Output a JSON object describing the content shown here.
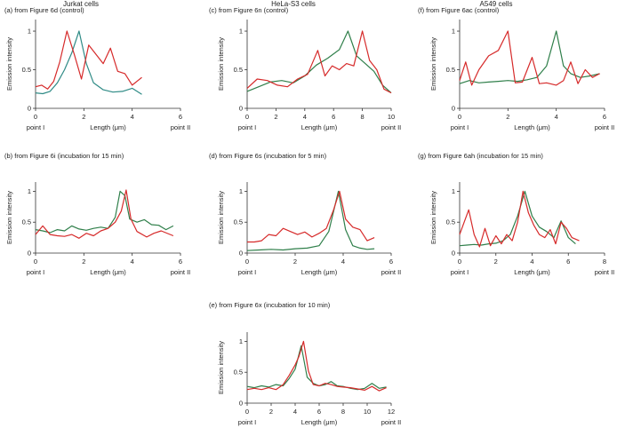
{
  "columns": [
    {
      "id": "jurkat",
      "title": "Jurkat cells"
    },
    {
      "id": "hela",
      "title": "HeLa-S3 cells"
    },
    {
      "id": "a549",
      "title": "A549 cells"
    }
  ],
  "colors": {
    "red": "#d62a2a",
    "green": "#2f7f4a",
    "teal": "#2f8b86"
  },
  "chart_data": [
    {
      "id": "a",
      "type": "line",
      "title": "(a) from Figure 6d (control)",
      "xlabel": "Length (μm)",
      "ylabel": "Emission intensity",
      "xlim": [
        0,
        6
      ],
      "ylim": [
        0,
        1.15
      ],
      "xticks": [
        0,
        2,
        4,
        6
      ],
      "yticks": [
        0,
        0.5,
        1
      ],
      "start_label": "point I",
      "end_label": "point II",
      "series": [
        {
          "name": "teal",
          "color": "#2f8b86",
          "x": [
            0,
            0.3,
            0.6,
            0.9,
            1.2,
            1.5,
            1.8,
            2.1,
            2.4,
            2.8,
            3.2,
            3.6,
            4.0,
            4.4
          ],
          "y": [
            0.2,
            0.19,
            0.22,
            0.33,
            0.5,
            0.72,
            1.0,
            0.58,
            0.33,
            0.24,
            0.21,
            0.22,
            0.26,
            0.18
          ]
        },
        {
          "name": "red",
          "color": "#d62a2a",
          "x": [
            0,
            0.25,
            0.5,
            0.75,
            1.0,
            1.3,
            1.6,
            1.9,
            2.2,
            2.5,
            2.8,
            3.1,
            3.4,
            3.7,
            4.0,
            4.4
          ],
          "y": [
            0.28,
            0.3,
            0.25,
            0.35,
            0.6,
            1.0,
            0.7,
            0.38,
            0.82,
            0.7,
            0.58,
            0.78,
            0.48,
            0.45,
            0.3,
            0.4
          ]
        }
      ]
    },
    {
      "id": "b",
      "type": "line",
      "title": "(b) from Figure 6i (incubation for 15 min)",
      "xlabel": "Length (μm)",
      "ylabel": "Emission intensity",
      "xlim": [
        0,
        6
      ],
      "ylim": [
        0,
        1.15
      ],
      "xticks": [
        0,
        2,
        4,
        6
      ],
      "yticks": [
        0,
        0.5,
        1
      ],
      "start_label": "point I",
      "end_label": "point II",
      "series": [
        {
          "name": "green",
          "color": "#2f7f4a",
          "x": [
            0,
            0.3,
            0.6,
            0.9,
            1.2,
            1.5,
            1.8,
            2.1,
            2.4,
            2.7,
            3.0,
            3.3,
            3.5,
            3.7,
            3.9,
            4.2,
            4.5,
            4.8,
            5.1,
            5.4,
            5.7
          ],
          "y": [
            0.38,
            0.36,
            0.33,
            0.38,
            0.36,
            0.44,
            0.39,
            0.37,
            0.4,
            0.42,
            0.4,
            0.58,
            1.0,
            0.93,
            0.55,
            0.5,
            0.54,
            0.46,
            0.45,
            0.38,
            0.44
          ]
        },
        {
          "name": "red",
          "color": "#d62a2a",
          "x": [
            0,
            0.3,
            0.6,
            0.9,
            1.2,
            1.5,
            1.8,
            2.1,
            2.4,
            2.7,
            3.0,
            3.3,
            3.55,
            3.75,
            3.95,
            4.2,
            4.6,
            4.9,
            5.2,
            5.7
          ],
          "y": [
            0.3,
            0.44,
            0.3,
            0.28,
            0.27,
            0.3,
            0.24,
            0.32,
            0.28,
            0.36,
            0.4,
            0.5,
            0.68,
            1.02,
            0.55,
            0.35,
            0.26,
            0.32,
            0.36,
            0.28
          ]
        }
      ]
    },
    {
      "id": "c",
      "type": "line",
      "title": "(c) from Figure 6n (control)",
      "xlabel": "Length (μm)",
      "ylabel": "Emission intensity",
      "xlim": [
        0,
        10
      ],
      "ylim": [
        0,
        1.15
      ],
      "xticks": [
        0,
        2,
        4,
        6,
        8,
        10
      ],
      "yticks": [
        0,
        0.5,
        1
      ],
      "start_label": "point I",
      "end_label": "point II",
      "series": [
        {
          "name": "green",
          "color": "#2f7f4a",
          "x": [
            0,
            0.8,
            1.6,
            2.4,
            3.2,
            4.0,
            4.8,
            5.6,
            6.4,
            7.0,
            7.6,
            8.2,
            8.8,
            9.4,
            10.0
          ],
          "y": [
            0.22,
            0.28,
            0.34,
            0.36,
            0.33,
            0.42,
            0.56,
            0.65,
            0.76,
            1.0,
            0.68,
            0.58,
            0.48,
            0.3,
            0.2
          ]
        },
        {
          "name": "red",
          "color": "#d62a2a",
          "x": [
            0,
            0.7,
            1.4,
            2.1,
            2.8,
            3.5,
            4.2,
            4.9,
            5.4,
            5.9,
            6.4,
            6.9,
            7.4,
            8.0,
            8.5,
            9.0,
            9.5,
            10.0
          ],
          "y": [
            0.26,
            0.38,
            0.36,
            0.3,
            0.28,
            0.38,
            0.44,
            0.75,
            0.42,
            0.55,
            0.5,
            0.58,
            0.55,
            1.0,
            0.62,
            0.5,
            0.25,
            0.2
          ]
        }
      ]
    },
    {
      "id": "d",
      "type": "line",
      "title": "(d) from Figure 6s (incubation for 5 min)",
      "xlabel": "Length (μm)",
      "ylabel": "Emission intensity",
      "xlim": [
        0,
        6
      ],
      "ylim": [
        0,
        1.15
      ],
      "xticks": [
        0,
        2,
        4,
        6
      ],
      "yticks": [
        0,
        0.5,
        1
      ],
      "start_label": "point I",
      "end_label": "point II",
      "series": [
        {
          "name": "green",
          "color": "#2f7f4a",
          "x": [
            0,
            0.5,
            1.0,
            1.5,
            2.0,
            2.5,
            3.0,
            3.4,
            3.8,
            4.1,
            4.4,
            4.7,
            5.0,
            5.3
          ],
          "y": [
            0.04,
            0.05,
            0.06,
            0.05,
            0.07,
            0.08,
            0.12,
            0.35,
            1.0,
            0.38,
            0.12,
            0.08,
            0.06,
            0.07
          ]
        },
        {
          "name": "red",
          "color": "#d62a2a",
          "x": [
            0,
            0.3,
            0.6,
            0.9,
            1.2,
            1.5,
            1.8,
            2.1,
            2.4,
            2.7,
            3.0,
            3.3,
            3.6,
            3.85,
            4.1,
            4.4,
            4.7,
            5.0,
            5.3
          ],
          "y": [
            0.18,
            0.18,
            0.2,
            0.3,
            0.28,
            0.4,
            0.35,
            0.3,
            0.34,
            0.26,
            0.32,
            0.4,
            0.7,
            1.0,
            0.55,
            0.42,
            0.38,
            0.2,
            0.25
          ]
        }
      ]
    },
    {
      "id": "e",
      "type": "line",
      "title": "(e) from Figure 6x (incubation for 10 min)",
      "xlabel": "Length (μm)",
      "ylabel": "Emission intensity",
      "xlim": [
        0,
        12
      ],
      "ylim": [
        0,
        1.15
      ],
      "xticks": [
        0,
        2,
        4,
        6,
        8,
        10,
        12
      ],
      "yticks": [
        0,
        0.5,
        1
      ],
      "start_label": "point I",
      "end_label": "point II",
      "series": [
        {
          "name": "green",
          "color": "#2f7f4a",
          "x": [
            0,
            0.6,
            1.2,
            1.8,
            2.4,
            3.0,
            3.5,
            4.0,
            4.5,
            5.0,
            5.5,
            6.0,
            6.5,
            7.0,
            7.5,
            8.0,
            8.6,
            9.2,
            9.8,
            10.4,
            11.0,
            11.6
          ],
          "y": [
            0.27,
            0.25,
            0.28,
            0.26,
            0.3,
            0.28,
            0.4,
            0.55,
            0.93,
            0.42,
            0.32,
            0.28,
            0.3,
            0.35,
            0.28,
            0.27,
            0.24,
            0.22,
            0.24,
            0.32,
            0.24,
            0.26
          ]
        },
        {
          "name": "red",
          "color": "#d62a2a",
          "x": [
            0,
            0.6,
            1.2,
            1.8,
            2.4,
            3.0,
            3.5,
            4.0,
            4.3,
            4.7,
            5.1,
            5.5,
            6.0,
            6.5,
            7.0,
            7.5,
            8.0,
            8.6,
            9.2,
            9.8,
            10.4,
            11.0,
            11.6
          ],
          "y": [
            0.22,
            0.24,
            0.22,
            0.25,
            0.22,
            0.3,
            0.45,
            0.62,
            0.75,
            1.0,
            0.52,
            0.3,
            0.28,
            0.32,
            0.3,
            0.27,
            0.26,
            0.25,
            0.23,
            0.21,
            0.27,
            0.2,
            0.25
          ]
        }
      ]
    },
    {
      "id": "f",
      "type": "line",
      "title": "(f) from Figure 6ac (control)",
      "xlabel": "Length (μm)",
      "ylabel": "Emission intensity",
      "xlim": [
        0,
        6
      ],
      "ylim": [
        0,
        1.15
      ],
      "xticks": [
        0,
        2,
        4,
        6
      ],
      "yticks": [
        0,
        0.5,
        1
      ],
      "start_label": "point I",
      "end_label": "point II",
      "series": [
        {
          "name": "green",
          "color": "#2f7f4a",
          "x": [
            0,
            0.4,
            0.8,
            1.2,
            1.6,
            2.0,
            2.4,
            2.8,
            3.2,
            3.6,
            4.0,
            4.3,
            4.6,
            5.0,
            5.4,
            5.8
          ],
          "y": [
            0.32,
            0.36,
            0.33,
            0.34,
            0.35,
            0.36,
            0.35,
            0.37,
            0.4,
            0.55,
            1.0,
            0.55,
            0.45,
            0.4,
            0.42,
            0.45
          ]
        },
        {
          "name": "red",
          "color": "#d62a2a",
          "x": [
            0,
            0.25,
            0.5,
            0.8,
            1.2,
            1.6,
            2.0,
            2.3,
            2.6,
            3.0,
            3.3,
            3.6,
            4.0,
            4.3,
            4.6,
            4.9,
            5.2,
            5.5,
            5.8
          ],
          "y": [
            0.36,
            0.6,
            0.3,
            0.5,
            0.68,
            0.75,
            1.0,
            0.33,
            0.34,
            0.66,
            0.32,
            0.33,
            0.3,
            0.36,
            0.6,
            0.32,
            0.5,
            0.4,
            0.45
          ]
        }
      ]
    },
    {
      "id": "g",
      "type": "line",
      "title": "(g) from Figure 6ah (incubation for 15 min)",
      "xlabel": "Length (μm)",
      "ylabel": "Emission intensity",
      "xlim": [
        0,
        8
      ],
      "ylim": [
        0,
        1.15
      ],
      "xticks": [
        0,
        2,
        4,
        6,
        8
      ],
      "yticks": [
        0,
        0.5,
        1
      ],
      "start_label": "point I",
      "end_label": "point II",
      "series": [
        {
          "name": "green",
          "color": "#2f7f4a",
          "x": [
            0,
            0.4,
            0.8,
            1.2,
            1.6,
            2.0,
            2.4,
            2.8,
            3.2,
            3.6,
            4.0,
            4.4,
            4.8,
            5.2,
            5.6,
            6.0,
            6.4
          ],
          "y": [
            0.12,
            0.13,
            0.14,
            0.13,
            0.15,
            0.16,
            0.2,
            0.3,
            0.6,
            1.0,
            0.6,
            0.42,
            0.35,
            0.25,
            0.52,
            0.25,
            0.15
          ]
        },
        {
          "name": "red",
          "color": "#d62a2a",
          "x": [
            0,
            0.25,
            0.5,
            0.8,
            1.1,
            1.4,
            1.7,
            2.0,
            2.3,
            2.6,
            2.9,
            3.2,
            3.5,
            3.8,
            4.1,
            4.4,
            4.7,
            5.0,
            5.3,
            5.6,
            5.9,
            6.2,
            6.6
          ],
          "y": [
            0.3,
            0.5,
            0.7,
            0.3,
            0.1,
            0.4,
            0.12,
            0.28,
            0.15,
            0.3,
            0.2,
            0.5,
            1.0,
            0.65,
            0.45,
            0.3,
            0.25,
            0.38,
            0.15,
            0.5,
            0.4,
            0.25,
            0.2
          ]
        }
      ]
    }
  ]
}
